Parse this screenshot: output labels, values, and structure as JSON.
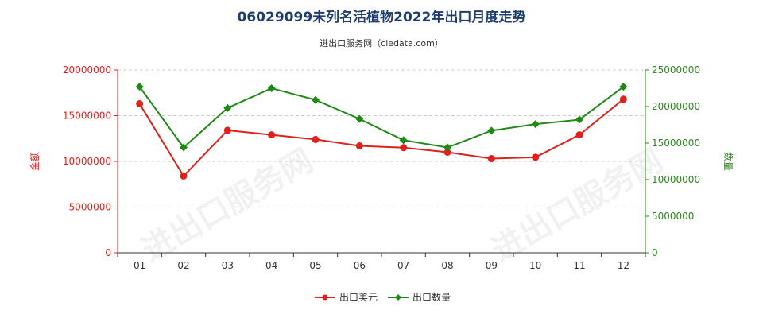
{
  "chart_data": {
    "type": "line",
    "title": "06029099未列名活植物2022年出口月度走势",
    "subtitle": "进出口服务网（ciedata.com）",
    "categories": [
      "01",
      "02",
      "03",
      "04",
      "05",
      "06",
      "07",
      "08",
      "09",
      "10",
      "11",
      "12"
    ],
    "y_left": {
      "label": "金额",
      "range": [
        0,
        20000000
      ],
      "ticks": [
        "0",
        "5000000",
        "10000000",
        "15000000",
        "20000000"
      ],
      "color": "#e0201b"
    },
    "y_right": {
      "label": "数量",
      "range": [
        0,
        25000000
      ],
      "ticks": [
        "0",
        "5000000",
        "10000000",
        "15000000",
        "20000000",
        "25000000"
      ],
      "color": "#2a8a1a"
    },
    "series": [
      {
        "name": "出口美元",
        "axis": "left",
        "color": "#e0201b",
        "marker": "circle",
        "values": [
          16300000,
          8400000,
          13400000,
          12900000,
          12400000,
          11700000,
          11500000,
          11000000,
          10300000,
          10450000,
          12900000,
          16800000
        ]
      },
      {
        "name": "出口数量",
        "axis": "right",
        "color": "#1e8a14",
        "marker": "diamond",
        "values": [
          22700000,
          14400000,
          19800000,
          22500000,
          20900000,
          18300000,
          15400000,
          14400000,
          16700000,
          17600000,
          18200000,
          22700000
        ]
      }
    ],
    "legend_position": "bottom-center",
    "grid": "horizontal-dashed",
    "watermark": "进出口服务网"
  }
}
